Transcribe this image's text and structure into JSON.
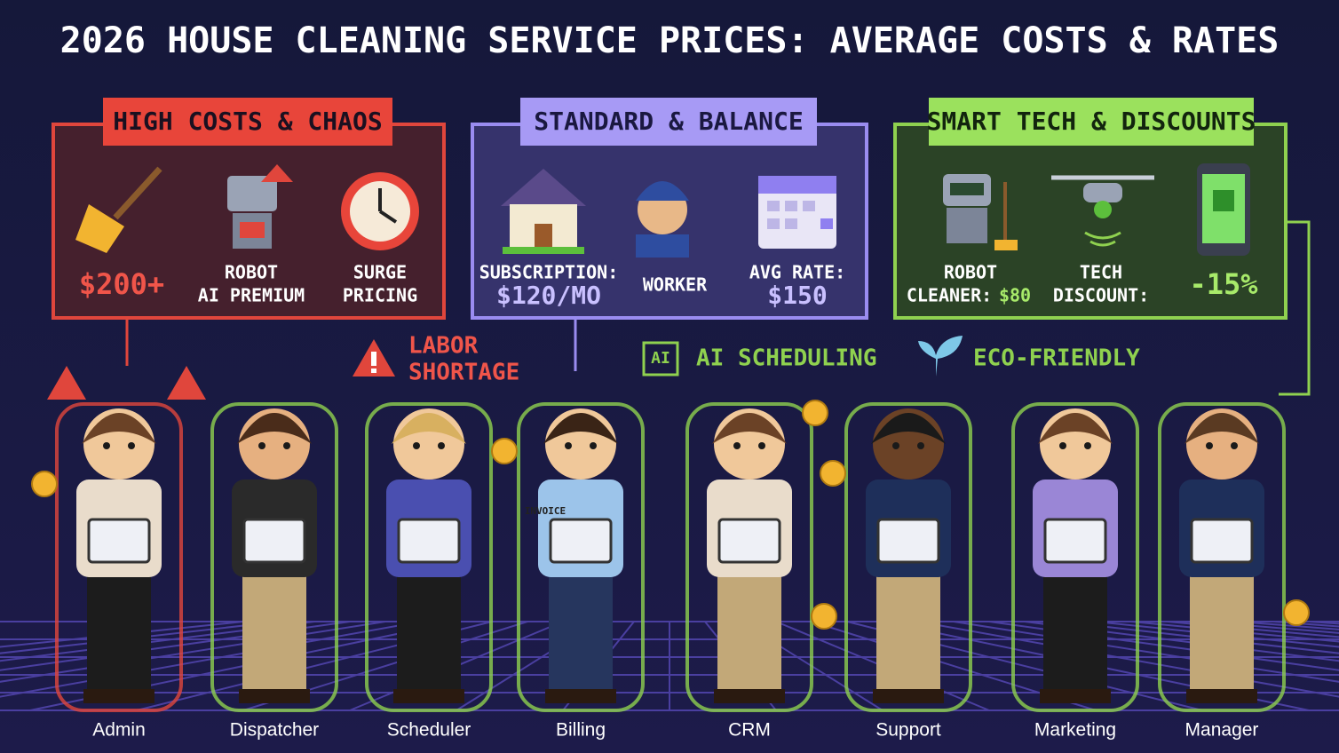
{
  "title": "2026 HOUSE CLEANING SERVICE PRICES: AVERAGE COSTS & RATES",
  "panels": [
    {
      "label": "HIGH COSTS & CHAOS",
      "items": [
        {
          "lines": [
            "$200+"
          ]
        },
        {
          "lines": [
            "ROBOT",
            "AI PREMIUM"
          ]
        },
        {
          "lines": [
            "SURGE",
            "PRICING"
          ]
        }
      ]
    },
    {
      "label": "STANDARD & BALANCE",
      "items": [
        {
          "lines": [
            "SUBSCRIPTION:",
            "$120/MO"
          ]
        },
        {
          "lines": [
            "WORKER"
          ]
        },
        {
          "lines": [
            "AVG RATE:",
            "$150"
          ]
        }
      ]
    },
    {
      "label": "SMART TECH & DISCOUNTS",
      "items": [
        {
          "lines": [
            "ROBOT",
            "CLEANER:"
          ],
          "value": "$80"
        },
        {
          "lines": [
            "TECH",
            "DISCOUNT:"
          ]
        },
        {
          "lines": [
            "-15%"
          ]
        }
      ]
    }
  ],
  "callouts": {
    "labor_shortage": [
      "LABOR",
      "SHORTAGE"
    ],
    "ai_chip": "AI",
    "ai_scheduling": "AI SCHEDULING",
    "eco_friendly": "ECO-FRIENDLY",
    "invoice": "INVOICE"
  },
  "roles": [
    "Admin",
    "Dispatcher",
    "Scheduler",
    "Billing",
    "CRM",
    "Support",
    "Marketing",
    "Manager"
  ]
}
